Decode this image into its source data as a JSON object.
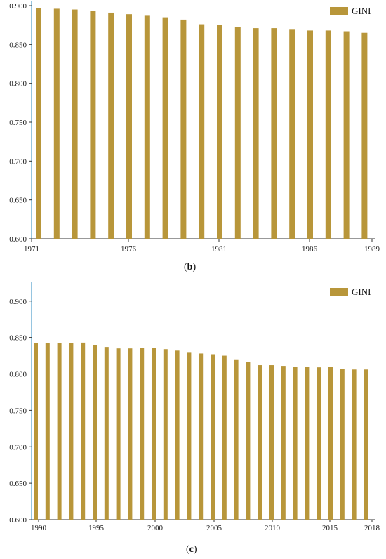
{
  "chart_data": [
    {
      "type": "bar",
      "panel_label": "b",
      "legend": [
        "GINI"
      ],
      "legend_position": "top-right",
      "bar_color": "#B8963A",
      "axis_color": "#2E8BC0",
      "categories": [
        "1971",
        "1972",
        "1973",
        "1974",
        "1975",
        "1976",
        "1977",
        "1978",
        "1979",
        "1980",
        "1981",
        "1982",
        "1983",
        "1984",
        "1985",
        "1986",
        "1987",
        "1988",
        "1989"
      ],
      "series": [
        {
          "name": "GINI",
          "values": [
            0.897,
            0.896,
            0.895,
            0.893,
            0.891,
            0.889,
            0.887,
            0.885,
            0.882,
            0.876,
            0.875,
            0.872,
            0.871,
            0.871,
            0.869,
            0.868,
            0.868,
            0.867,
            0.865
          ]
        }
      ],
      "x_tick_labels": [
        "1971",
        "1976",
        "1981",
        "1986",
        "1989"
      ],
      "y_ticks": [
        "0.600",
        "0.650",
        "0.700",
        "0.750",
        "0.800",
        "0.850",
        "0.900"
      ],
      "ylim": [
        0.6,
        0.9
      ],
      "grid": false
    },
    {
      "type": "bar",
      "panel_label": "c",
      "legend": [
        "GINI"
      ],
      "legend_position": "top-right",
      "bar_color": "#B8963A",
      "axis_color": "#2E8BC0",
      "categories": [
        "1990",
        "1991",
        "1992",
        "1993",
        "1994",
        "1995",
        "1996",
        "1997",
        "1998",
        "1999",
        "2000",
        "2001",
        "2002",
        "2003",
        "2004",
        "2005",
        "2006",
        "2007",
        "2008",
        "2009",
        "2010",
        "2011",
        "2012",
        "2013",
        "2014",
        "2015",
        "2016",
        "2017",
        "2018"
      ],
      "series": [
        {
          "name": "GINI",
          "values": [
            0.842,
            0.842,
            0.842,
            0.842,
            0.843,
            0.84,
            0.837,
            0.835,
            0.835,
            0.836,
            0.836,
            0.834,
            0.832,
            0.83,
            0.828,
            0.827,
            0.825,
            0.82,
            0.816,
            0.812,
            0.812,
            0.811,
            0.81,
            0.81,
            0.809,
            0.81,
            0.807,
            0.806,
            0.806
          ]
        }
      ],
      "x_tick_labels": [
        "1990",
        "1995",
        "2000",
        "2005",
        "2010",
        "2015",
        "2018"
      ],
      "y_ticks": [
        "0.600",
        "0.650",
        "0.700",
        "0.750",
        "0.800",
        "0.850",
        "0.900"
      ],
      "ylim": [
        0.6,
        0.92
      ],
      "grid": false
    }
  ],
  "captions": {
    "b": "b",
    "c": "c"
  }
}
